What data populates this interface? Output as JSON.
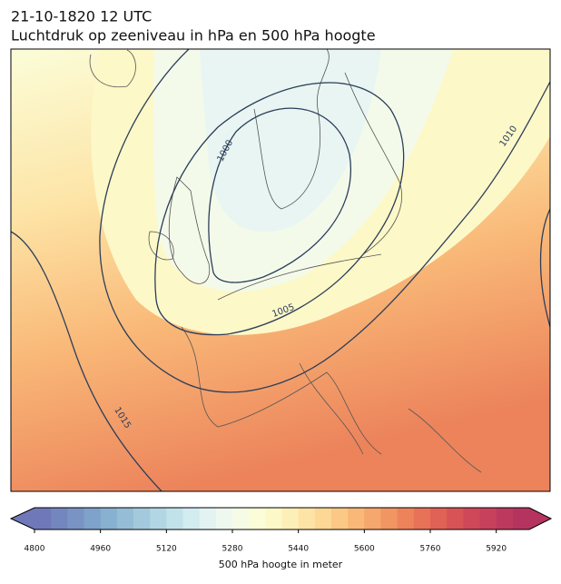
{
  "title": "21-10-1820 12 UTC",
  "subtitle": "Luchtdruk op zeeniveau in hPa en 500 hPa hoogte",
  "isobar_labels": [
    1000,
    1005,
    1010,
    1015
  ],
  "colorbar": {
    "label": "500 hPa hoogte in meter",
    "lim": [
      4800,
      6000
    ],
    "ticks": [
      4800,
      4960,
      5120,
      5280,
      5440,
      5600,
      5760,
      5920
    ],
    "colors": [
      "#6f78b8",
      "#7486be",
      "#7994c4",
      "#7ea2ca",
      "#88b0d0",
      "#95bdd6",
      "#a3cadc",
      "#b2d6e3",
      "#c2e2ea",
      "#d2ecf0",
      "#e2f3f2",
      "#eef8ef",
      "#f6fbe6",
      "#fbfdd8",
      "#fdf8c8",
      "#fdefb8",
      "#fde4a6",
      "#fcd795",
      "#fbc885",
      "#f9b877",
      "#f6a76b",
      "#f19562",
      "#ec835b",
      "#e77257",
      "#e06155",
      "#d75356",
      "#cf4859",
      "#c7405c",
      "#bd395e",
      "#b5345f"
    ]
  }
}
